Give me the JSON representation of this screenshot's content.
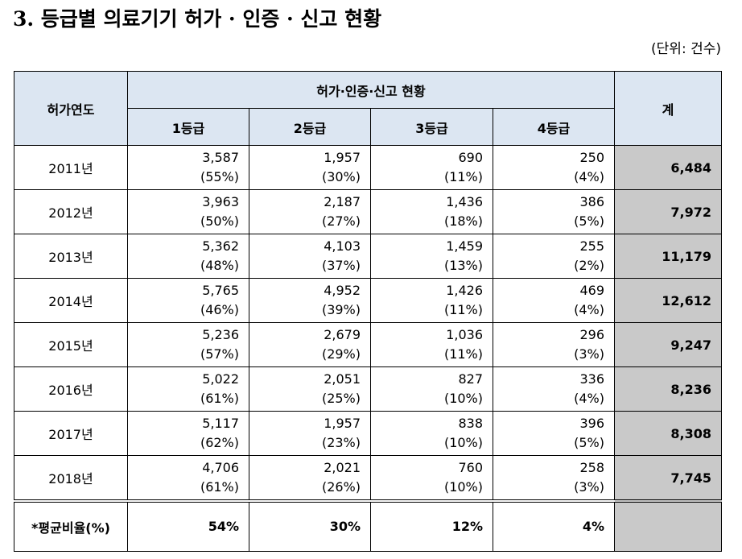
{
  "header": {
    "title": "3. 등급별 의료기기 허가 · 인증 · 신고 현황",
    "unit": "(단위: 건수)"
  },
  "table": {
    "col_year": "허가연도",
    "group": "허가·인증·신고 현황",
    "grades": [
      "1등급",
      "2등급",
      "3등급",
      "4등급"
    ],
    "col_total": "계",
    "rows": [
      {
        "year": "2011년",
        "cells": [
          [
            "3,587",
            "(55%)"
          ],
          [
            "1,957",
            "(30%)"
          ],
          [
            "690",
            "(11%)"
          ],
          [
            "250",
            "(4%)"
          ]
        ],
        "total": "6,484"
      },
      {
        "year": "2012년",
        "cells": [
          [
            "3,963",
            "(50%)"
          ],
          [
            "2,187",
            "(27%)"
          ],
          [
            "1,436",
            "(18%)"
          ],
          [
            "386",
            "(5%)"
          ]
        ],
        "total": "7,972"
      },
      {
        "year": "2013년",
        "cells": [
          [
            "5,362",
            "(48%)"
          ],
          [
            "4,103",
            "(37%)"
          ],
          [
            "1,459",
            "(13%)"
          ],
          [
            "255",
            "(2%)"
          ]
        ],
        "total": "11,179"
      },
      {
        "year": "2014년",
        "cells": [
          [
            "5,765",
            "(46%)"
          ],
          [
            "4,952",
            "(39%)"
          ],
          [
            "1,426",
            "(11%)"
          ],
          [
            "469",
            "(4%)"
          ]
        ],
        "total": "12,612"
      },
      {
        "year": "2015년",
        "cells": [
          [
            "5,236",
            "(57%)"
          ],
          [
            "2,679",
            "(29%)"
          ],
          [
            "1,036",
            "(11%)"
          ],
          [
            "296",
            "(3%)"
          ]
        ],
        "total": "9,247"
      },
      {
        "year": "2016년",
        "cells": [
          [
            "5,022",
            "(61%)"
          ],
          [
            "2,051",
            "(25%)"
          ],
          [
            "827",
            "(10%)"
          ],
          [
            "336",
            "(4%)"
          ]
        ],
        "total": "8,236"
      },
      {
        "year": "2017년",
        "cells": [
          [
            "5,117",
            "(62%)"
          ],
          [
            "1,957",
            "(23%)"
          ],
          [
            "838",
            "(10%)"
          ],
          [
            "396",
            "(5%)"
          ]
        ],
        "total": "8,308"
      },
      {
        "year": "2018년",
        "cells": [
          [
            "4,706",
            "(61%)"
          ],
          [
            "2,021",
            "(26%)"
          ],
          [
            "760",
            "(10%)"
          ],
          [
            "258",
            "(3%)"
          ]
        ],
        "total": "7,745"
      }
    ],
    "average": {
      "label": "*평균비율(%)",
      "values": [
        "54%",
        "30%",
        "12%",
        "4%"
      ]
    }
  }
}
